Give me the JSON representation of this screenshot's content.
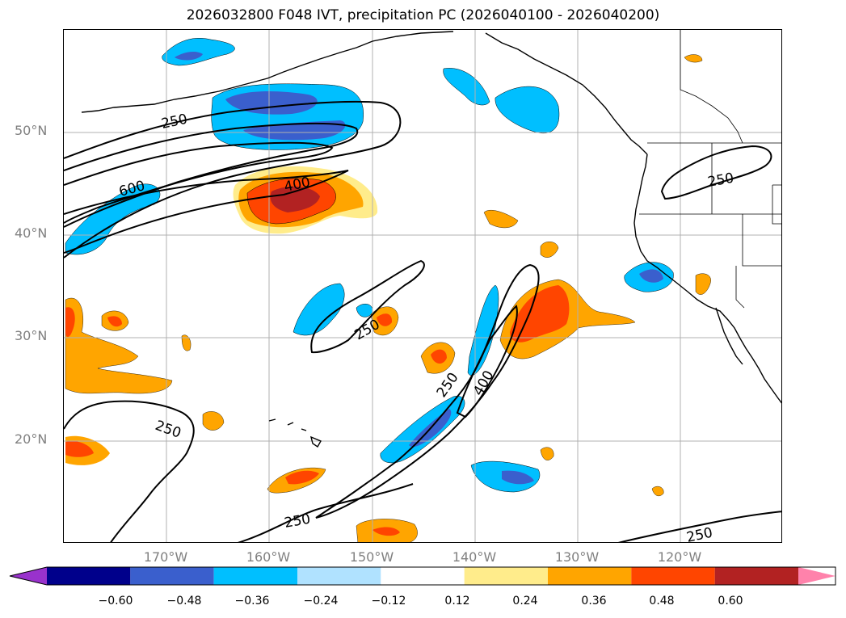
{
  "title": "2026032800 F048 IVT, precipitation PC (2026040100 - 2026040200)",
  "latitude_labels": [
    "50°N",
    "40°N",
    "30°N",
    "20°N"
  ],
  "longitude_labels": [
    "170°W",
    "160°W",
    "150°W",
    "140°W",
    "130°W",
    "120°W"
  ],
  "contour_labels": [
    "250",
    "600",
    "400",
    "250",
    "250",
    "400",
    "250",
    "250",
    "250",
    "250"
  ],
  "colorbar": {
    "ticks": [
      "−0.60",
      "−0.48",
      "−0.36",
      "−0.24",
      "−0.12",
      "0.12",
      "0.24",
      "0.36",
      "0.48",
      "0.60"
    ],
    "colors": [
      "#9932cc",
      "#00008b",
      "#3a5fcd",
      "#00bfff",
      "#b0e2ff",
      "#ffffff",
      "#ffec8b",
      "#ffa500",
      "#ff4500",
      "#b22222",
      "#ff82ab"
    ]
  },
  "chart_data": {
    "type": "map",
    "title": "2026032800 F048 IVT, precipitation PC (2026040100 - 2026040200)",
    "fields": [
      "IVT contours (black)",
      "precipitation PC (filled)"
    ],
    "ivt_contour_levels": [
      250,
      400,
      600
    ],
    "colorbar_levels": [
      -0.6,
      -0.48,
      -0.36,
      -0.24,
      -0.12,
      0.12,
      0.24,
      0.36,
      0.48,
      0.6
    ],
    "lat_range": [
      10,
      60
    ],
    "lon_range": [
      -180,
      -110
    ]
  }
}
